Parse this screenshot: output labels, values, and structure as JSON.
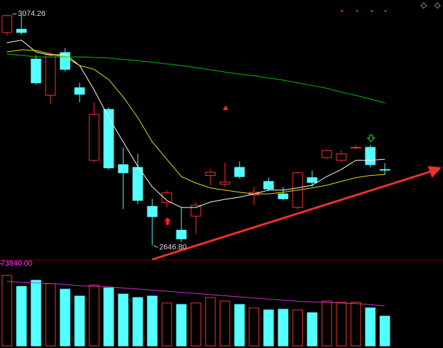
{
  "chart_data": {
    "type": "candlestick",
    "ylim": [
      2621,
      3100
    ],
    "up_color": "#ff3232",
    "down_color": "#54ffff",
    "annotations": [
      {
        "value": 3074.26,
        "label": "3074.26"
      },
      {
        "value": 2646.8,
        "label": "2646.80"
      }
    ],
    "candles": [
      {
        "open": 3040,
        "high": 3073,
        "low": 3034,
        "close": 3071
      },
      {
        "open": 3046,
        "high": 3074.26,
        "low": 3036,
        "close": 3040
      },
      {
        "open": 2991,
        "high": 2998,
        "low": 2944,
        "close": 2947
      },
      {
        "open": 2924,
        "high": 3004,
        "low": 2908,
        "close": 3000
      },
      {
        "open": 3003,
        "high": 3011,
        "low": 2968,
        "close": 2972
      },
      {
        "open": 2938,
        "high": 2947,
        "low": 2911,
        "close": 2926
      },
      {
        "open": 2804,
        "high": 2911,
        "low": 2800,
        "close": 2889
      },
      {
        "open": 2898,
        "high": 2902,
        "low": 2787,
        "close": 2790
      },
      {
        "open": 2796,
        "high": 2828,
        "low": 2714,
        "close": 2781
      },
      {
        "open": 2791,
        "high": 2816,
        "low": 2723,
        "close": 2730
      },
      {
        "open": 2719,
        "high": 2733,
        "low": 2646.8,
        "close": 2700
      },
      {
        "open": 2726,
        "high": 2749,
        "low": 2717,
        "close": 2744
      },
      {
        "open": 2675,
        "high": 2717,
        "low": 2653,
        "close": 2659
      },
      {
        "open": 2701,
        "high": 2726,
        "low": 2668,
        "close": 2721
      },
      {
        "open": 2776,
        "high": 2788,
        "low": 2758,
        "close": 2782
      },
      {
        "open": 2760,
        "high": 2800,
        "low": 2755,
        "close": 2764
      },
      {
        "open": 2791,
        "high": 2802,
        "low": 2770,
        "close": 2774
      },
      {
        "open": 2740,
        "high": 2755,
        "low": 2722,
        "close": 2745
      },
      {
        "open": 2765,
        "high": 2772,
        "low": 2747,
        "close": 2751
      },
      {
        "open": 2742,
        "high": 2755,
        "low": 2730,
        "close": 2733
      },
      {
        "open": 2717,
        "high": 2783,
        "low": 2713,
        "close": 2781
      },
      {
        "open": 2772,
        "high": 2785,
        "low": 2755,
        "close": 2763
      },
      {
        "open": 2809,
        "high": 2824,
        "low": 2806,
        "close": 2822
      },
      {
        "open": 2804,
        "high": 2822,
        "low": 2801,
        "close": 2816
      },
      {
        "open": 2827,
        "high": 2832,
        "low": 2824,
        "close": 2828
      },
      {
        "open": 2828,
        "high": 2832,
        "low": 2791,
        "close": 2796
      },
      {
        "open": 2787,
        "high": 2799,
        "low": 2777,
        "close": 2786
      }
    ],
    "ma_lines": [
      {
        "color": "#ffffff",
        "values": [
          3021,
          3026,
          3004,
          2998,
          3000,
          2979,
          2934,
          2883,
          2838,
          2793,
          2755,
          2730,
          2717,
          2717,
          2727,
          2732,
          2736,
          2742,
          2749,
          2749,
          2753,
          2758,
          2774,
          2787,
          2804,
          2804,
          2806
        ]
      },
      {
        "color": "#e8e000",
        "values": [
          3004,
          3008,
          3007,
          3000,
          2995,
          2979,
          2972,
          2953,
          2921,
          2883,
          2838,
          2806,
          2774,
          2762,
          2753,
          2749,
          2745,
          2742,
          2742,
          2745,
          2749,
          2753,
          2758,
          2765,
          2772,
          2776,
          2778
        ]
      },
      {
        "color": "#00c000",
        "values": [
          3000,
          2998,
          2995,
          2995,
          2995,
          2995,
          2994,
          2993,
          2990,
          2988,
          2985,
          2982,
          2979,
          2975,
          2971,
          2967,
          2963,
          2960,
          2956,
          2952,
          2947,
          2942,
          2937,
          2930,
          2924,
          2917,
          2910
        ]
      }
    ],
    "volume_ylim": [
      0,
      73840
    ],
    "volume_yticks": [
      {
        "value": 73840,
        "label": "73840.00"
      }
    ],
    "volume_label_color": "#ff40ff",
    "volume": [
      63300,
      53400,
      58900,
      55800,
      50900,
      44700,
      54600,
      52100,
      46500,
      43400,
      44700,
      38500,
      37200,
      38500,
      43400,
      40300,
      37200,
      34100,
      32300,
      32900,
      32300,
      29800,
      40300,
      39100,
      39100,
      34100,
      26700
    ],
    "volume_ma": {
      "color": "#d030d0",
      "values": [
        58000,
        57000,
        56500,
        56000,
        55000,
        54000,
        53500,
        53000,
        52000,
        51000,
        50000,
        49000,
        48000,
        47000,
        46000,
        45000,
        44000,
        43000,
        42000,
        41000,
        40000,
        39500,
        39000,
        38500,
        38000,
        37000,
        36000
      ]
    }
  }
}
